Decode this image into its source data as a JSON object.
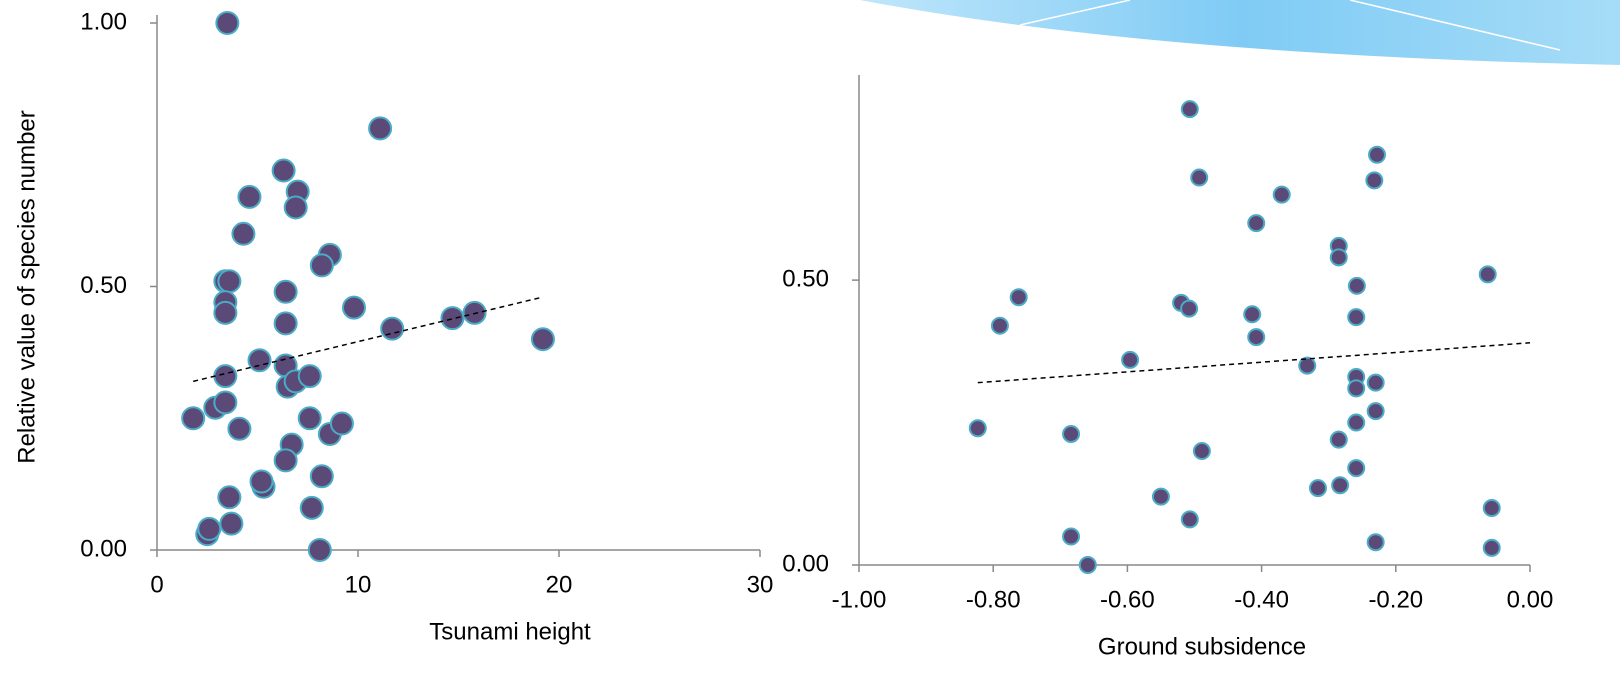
{
  "chart_data": [
    {
      "type": "scatter",
      "y_label": "Relative value of species number",
      "x_label": "Tsunami height",
      "marker_color": "#5b4a78",
      "marker_edge": "#4bacc6",
      "xlim": [
        0,
        30
      ],
      "xticks": [
        0,
        10,
        20,
        30
      ],
      "ylim": [
        0,
        1
      ],
      "yticks": [
        {
          "value": 0,
          "label": "0.00"
        },
        {
          "value": 0.5,
          "label": "0.50"
        },
        {
          "value": 1,
          "label": "1.00"
        }
      ],
      "x": [
        1.8,
        3.5,
        11.1,
        6.3,
        4.6,
        7.0,
        6.9,
        4.3,
        8.6,
        8.2,
        3.4,
        3.6,
        3.4,
        3.4,
        6.4,
        6.4,
        9.8,
        11.7,
        14.7,
        15.8,
        19.2,
        5.1,
        6.4,
        3.4,
        6.5,
        6.9,
        7.6,
        2.9,
        3.4,
        4.1,
        7.6,
        6.7,
        8.6,
        9.2,
        6.4,
        5.3,
        5.2,
        8.2,
        3.6,
        7.7,
        3.7,
        2.5,
        2.6,
        8.1
      ],
      "values": [
        0.25,
        1.0,
        0.8,
        0.72,
        0.67,
        0.68,
        0.65,
        0.6,
        0.56,
        0.54,
        0.51,
        0.51,
        0.47,
        0.45,
        0.49,
        0.43,
        0.46,
        0.42,
        0.44,
        0.45,
        0.4,
        0.36,
        0.35,
        0.33,
        0.31,
        0.32,
        0.33,
        0.27,
        0.28,
        0.23,
        0.25,
        0.2,
        0.22,
        0.24,
        0.17,
        0.12,
        0.13,
        0.14,
        0.1,
        0.08,
        0.05,
        0.03,
        0.04,
        0
      ],
      "trendline": {
        "x": [
          1.8,
          19.2
        ],
        "y": [
          0.32,
          0.48
        ]
      }
    },
    {
      "type": "scatter",
      "x_label": "Ground subsidence",
      "marker_color": "#5b4a78",
      "marker_edge": "#4bacc6",
      "xlim": [
        -1,
        0
      ],
      "xticks": [
        {
          "value": -1,
          "label": "-1.00"
        },
        {
          "value": -0.8,
          "label": "-0.80"
        },
        {
          "value": -0.6,
          "label": "-0.60"
        },
        {
          "value": -0.4,
          "label": "-0.40"
        },
        {
          "value": -0.2,
          "label": "-0.20"
        },
        {
          "value": 0,
          "label": "0.00"
        }
      ],
      "ylim": [
        0,
        0.86
      ],
      "yticks": [
        {
          "value": 0,
          "label": "0.00"
        },
        {
          "value": 0.5,
          "label": "0.50"
        }
      ],
      "x": [
        -0.507,
        -0.228,
        -0.493,
        -0.232,
        -0.37,
        -0.408,
        -0.285,
        -0.285,
        -0.063,
        -0.258,
        -0.762,
        -0.52,
        -0.508,
        -0.414,
        -0.259,
        -0.79,
        -0.408,
        -0.596,
        -0.332,
        -0.259,
        -0.259,
        -0.23,
        -0.23,
        -0.259,
        -0.823,
        -0.684,
        -0.285,
        -0.489,
        -0.259,
        -0.283,
        -0.316,
        -0.55,
        -0.057,
        -0.507,
        -0.684,
        -0.23,
        -0.057,
        -0.659
      ],
      "values": [
        0.8,
        0.72,
        0.68,
        0.675,
        0.65,
        0.6,
        0.56,
        0.54,
        0.51,
        0.49,
        0.47,
        0.46,
        0.45,
        0.44,
        0.435,
        0.42,
        0.4,
        0.36,
        0.35,
        0.33,
        0.31,
        0.32,
        0.27,
        0.25,
        0.24,
        0.23,
        0.22,
        0.2,
        0.17,
        0.14,
        0.135,
        0.12,
        0.1,
        0.08,
        0.05,
        0.04,
        0.03,
        0
      ],
      "trendline": {
        "x": [
          -0.823,
          0
        ],
        "y": [
          0.32,
          0.39
        ]
      }
    }
  ]
}
